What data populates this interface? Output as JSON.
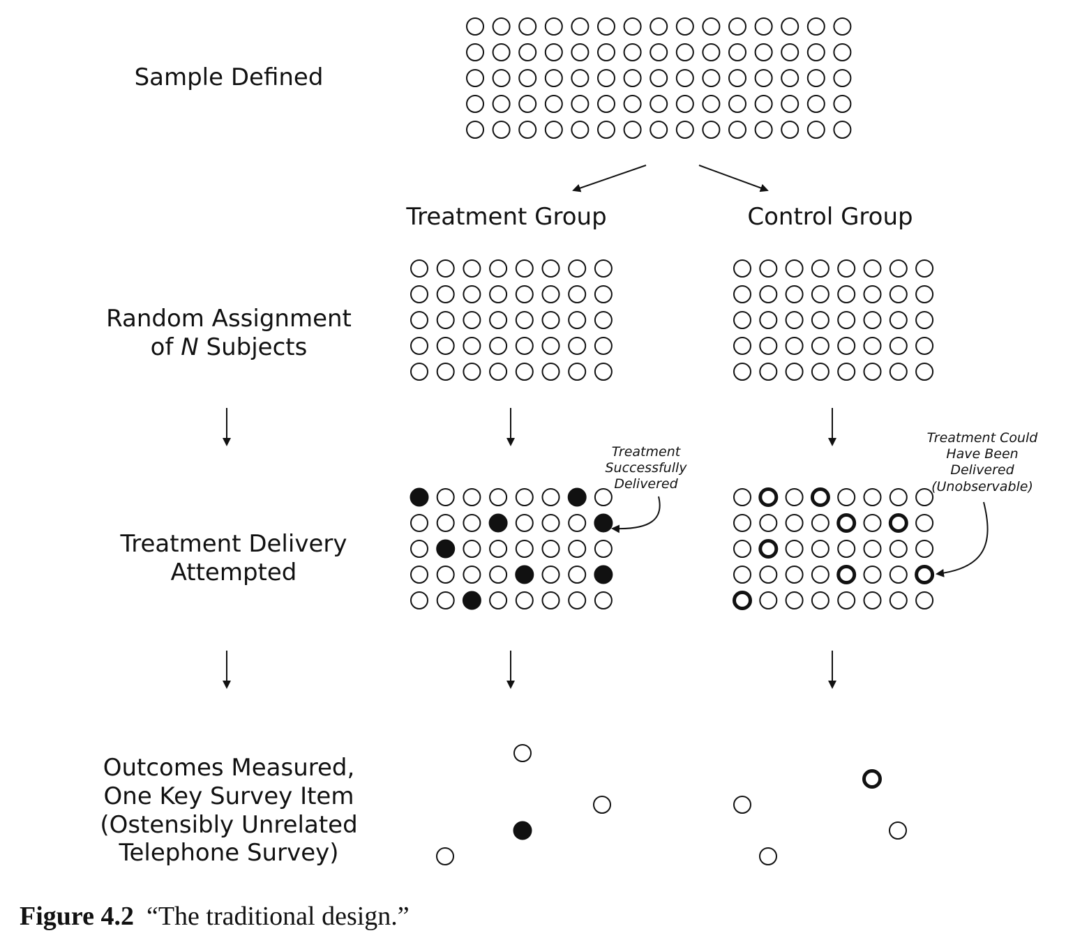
{
  "row_labels": {
    "sample": "Sample Defined",
    "random": [
      "Random Assignment",
      "of ",
      "N",
      " Subjects"
    ],
    "delivery": [
      "Treatment Delivery",
      "Attempted"
    ],
    "outcomes": [
      "Outcomes Measured,",
      "One Key Survey Item",
      "(Ostensibly Unrelated",
      "Telephone Survey)"
    ]
  },
  "groups": {
    "treatment": "Treatment Group",
    "control": "Control Group"
  },
  "annotations": {
    "treatment_delivered": [
      "Treatment",
      "Successfully",
      "Delivered"
    ],
    "control_could_deliver": [
      "Treatment Could",
      "Have Been",
      "Delivered",
      "(Unobservable)"
    ]
  },
  "caption": {
    "label": "Figure 4.2",
    "text": "“The traditional design.”"
  },
  "grids": {
    "sample": {
      "rows": 5,
      "cols": 15
    },
    "treatment_assigned": {
      "rows": 5,
      "cols": 8
    },
    "control_assigned": {
      "rows": 5,
      "cols": 8
    },
    "treatment_delivered": {
      "rows": 5,
      "cols": 8,
      "filled": [
        [
          0,
          0
        ],
        [
          0,
          6
        ],
        [
          1,
          3
        ],
        [
          1,
          7
        ],
        [
          2,
          1
        ],
        [
          3,
          4
        ],
        [
          3,
          7
        ],
        [
          4,
          2
        ]
      ]
    },
    "control_delivered": {
      "rows": 5,
      "cols": 8,
      "bold": [
        [
          0,
          1
        ],
        [
          0,
          3
        ],
        [
          1,
          4
        ],
        [
          1,
          6
        ],
        [
          2,
          1
        ],
        [
          3,
          4
        ],
        [
          3,
          7
        ],
        [
          4,
          0
        ]
      ]
    }
  },
  "outcomes": {
    "treatment": [
      "open",
      "open",
      "filled",
      "open"
    ],
    "control": [
      "bold",
      "open",
      "open",
      "open"
    ]
  }
}
